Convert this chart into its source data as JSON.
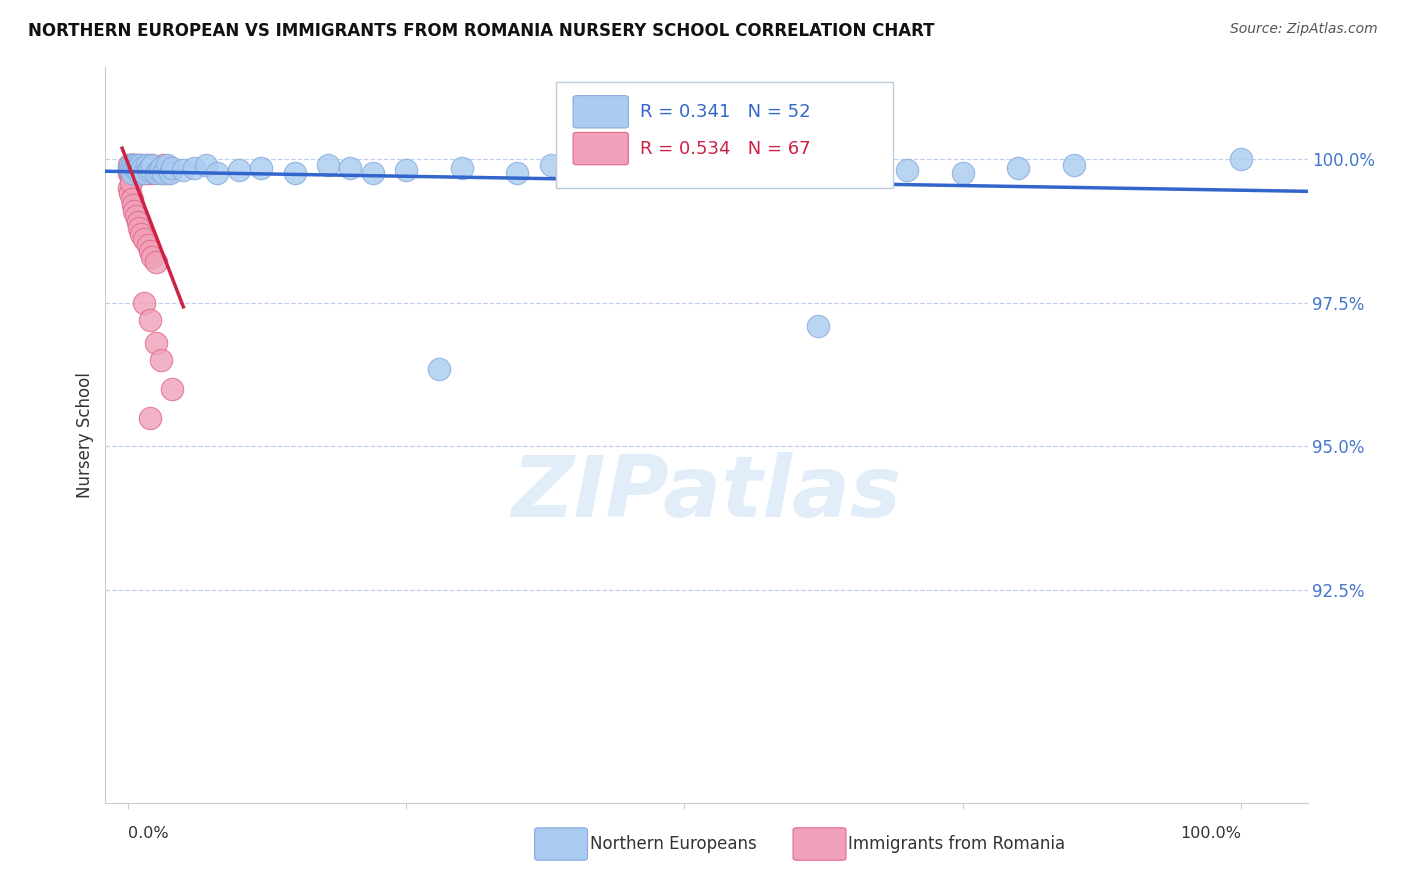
{
  "title": "NORTHERN EUROPEAN VS IMMIGRANTS FROM ROMANIA NURSERY SCHOOL CORRELATION CHART",
  "source": "Source: ZipAtlas.com",
  "ylabel": "Nursery School",
  "yticks": [
    0.925,
    0.95,
    0.975,
    1.0
  ],
  "ytick_labels": [
    "92.5%",
    "95.0%",
    "97.5%",
    "100.0%"
  ],
  "xlim": [
    -0.02,
    1.06
  ],
  "ylim": [
    0.888,
    1.016
  ],
  "blue_R": 0.341,
  "blue_N": 52,
  "pink_R": 0.534,
  "pink_N": 67,
  "blue_color": "#aaccf0",
  "blue_edge": "#88aade",
  "pink_color": "#f0a0b8",
  "pink_edge": "#e06888",
  "blue_line_color": "#3366cc",
  "pink_line_color": "#cc2244",
  "legend_label_blue": "Northern Europeans",
  "legend_label_pink": "Immigrants from Romania",
  "blue_x": [
    0.001,
    0.002,
    0.003,
    0.004,
    0.005,
    0.006,
    0.007,
    0.008,
    0.009,
    0.01,
    0.011,
    0.012,
    0.013,
    0.015,
    0.017,
    0.018,
    0.02,
    0.022,
    0.025,
    0.028,
    0.03,
    0.032,
    0.035,
    0.038,
    0.04,
    0.05,
    0.06,
    0.07,
    0.08,
    0.1,
    0.12,
    0.15,
    0.18,
    0.2,
    0.22,
    0.25,
    0.3,
    0.35,
    0.38,
    0.4,
    0.45,
    0.5,
    0.55,
    0.6,
    0.62,
    0.65,
    0.7,
    0.75,
    0.8,
    0.85,
    1.0,
    0.28
  ],
  "blue_y": [
    0.9985,
    0.999,
    0.9985,
    0.9975,
    0.999,
    0.9985,
    0.999,
    0.9985,
    0.998,
    0.9975,
    0.999,
    0.998,
    0.9985,
    0.9975,
    0.999,
    0.998,
    0.9985,
    0.999,
    0.9975,
    0.998,
    0.9985,
    0.9975,
    0.999,
    0.9975,
    0.9985,
    0.998,
    0.9985,
    0.999,
    0.9975,
    0.998,
    0.9985,
    0.9975,
    0.999,
    0.9985,
    0.9975,
    0.998,
    0.9985,
    0.9975,
    0.999,
    0.9985,
    0.997,
    0.9975,
    0.998,
    0.9985,
    0.971,
    0.999,
    0.998,
    0.9975,
    0.9985,
    0.999,
    1.0,
    0.9635
  ],
  "pink_x": [
    0.001,
    0.001,
    0.001,
    0.002,
    0.002,
    0.002,
    0.003,
    0.003,
    0.003,
    0.003,
    0.004,
    0.004,
    0.004,
    0.005,
    0.005,
    0.005,
    0.006,
    0.006,
    0.006,
    0.007,
    0.007,
    0.007,
    0.008,
    0.008,
    0.009,
    0.009,
    0.01,
    0.01,
    0.011,
    0.012,
    0.012,
    0.013,
    0.014,
    0.015,
    0.016,
    0.017,
    0.018,
    0.019,
    0.02,
    0.021,
    0.022,
    0.025,
    0.028,
    0.03,
    0.032,
    0.035,
    0.001,
    0.002,
    0.003,
    0.004,
    0.005,
    0.006,
    0.007,
    0.009,
    0.01,
    0.012,
    0.015,
    0.018,
    0.02,
    0.022,
    0.025,
    0.015,
    0.02,
    0.025,
    0.03,
    0.04,
    0.02
  ],
  "pink_y": [
    0.9985,
    0.999,
    0.9975,
    0.9985,
    0.999,
    0.9975,
    0.9985,
    0.999,
    0.9975,
    0.998,
    0.9985,
    0.999,
    0.9975,
    0.9985,
    0.999,
    0.9975,
    0.9985,
    0.999,
    0.9975,
    0.9985,
    0.999,
    0.9975,
    0.9985,
    0.998,
    0.9985,
    0.999,
    0.9975,
    0.998,
    0.9985,
    0.9975,
    0.999,
    0.9985,
    0.998,
    0.9975,
    0.9985,
    0.999,
    0.9975,
    0.998,
    0.9985,
    0.999,
    0.9975,
    0.998,
    0.9985,
    0.9975,
    0.999,
    0.9975,
    0.995,
    0.994,
    0.996,
    0.993,
    0.992,
    0.991,
    0.99,
    0.989,
    0.988,
    0.987,
    0.986,
    0.985,
    0.984,
    0.983,
    0.982,
    0.975,
    0.972,
    0.968,
    0.965,
    0.96,
    0.955
  ]
}
